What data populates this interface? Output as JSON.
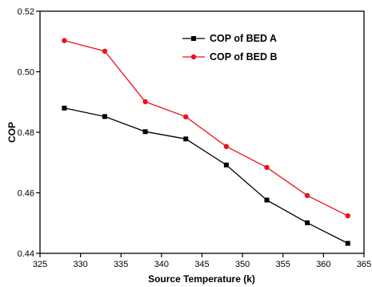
{
  "chart_data": {
    "type": "line",
    "title": "",
    "xlabel": "Source Temperature (k)",
    "ylabel": "COP",
    "xlim": [
      325,
      365
    ],
    "ylim": [
      0.44,
      0.52
    ],
    "xticks": [
      325,
      330,
      335,
      340,
      345,
      350,
      355,
      360,
      365
    ],
    "yticks": [
      0.44,
      0.46,
      0.48,
      0.5,
      0.52
    ],
    "ytick_labels": [
      "0.44",
      "0.46",
      "0.48",
      "0.50",
      "0.52"
    ],
    "grid": false,
    "legend_position": "top-right",
    "x": [
      328,
      333,
      338,
      343,
      348,
      353,
      358,
      363
    ],
    "series": [
      {
        "name": "COP of BED A",
        "color": "#000000",
        "marker": "square",
        "values": [
          0.488,
          0.4852,
          0.4802,
          0.4778,
          0.4692,
          0.4576,
          0.4501,
          0.4433
        ]
      },
      {
        "name": "COP of BED B",
        "color": "#e8141c",
        "marker": "circle",
        "values": [
          0.5103,
          0.5068,
          0.4901,
          0.4851,
          0.4753,
          0.4684,
          0.4591,
          0.4524
        ]
      }
    ]
  }
}
